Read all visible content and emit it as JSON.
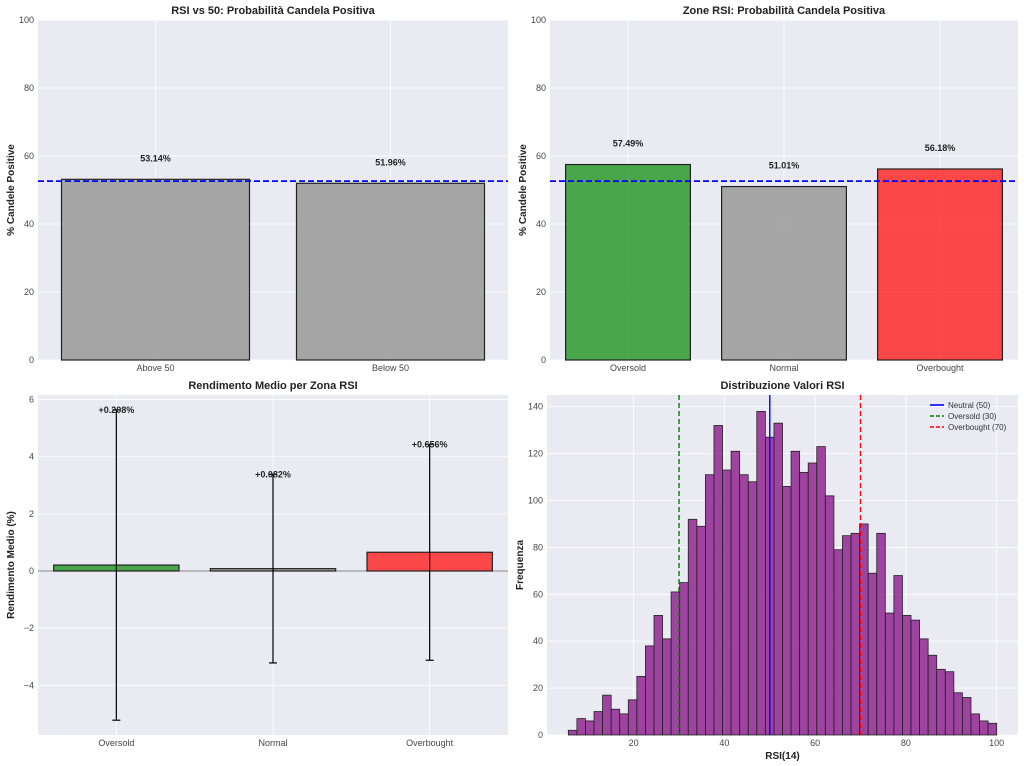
{
  "chart_data": [
    {
      "type": "bar",
      "title": "RSI vs 50: Probabilità Candela Positiva",
      "xlabel": "",
      "ylabel": "% Candele Positive",
      "categories": [
        "Above 50",
        "Below 50"
      ],
      "values": [
        53.14,
        51.96
      ],
      "data_labels": [
        "53.14%",
        "51.96%"
      ],
      "colors": [
        "#999999",
        "#999999"
      ],
      "reference_line": {
        "y": 52.6,
        "color": "#0000ff",
        "style": "dashed"
      },
      "ylim": [
        0,
        100
      ],
      "yticks": [
        0,
        20,
        40,
        60,
        80,
        100
      ],
      "grid": true
    },
    {
      "type": "bar",
      "title": "Zone RSI: Probabilità Candela Positiva",
      "xlabel": "",
      "ylabel": "% Candele Positive",
      "categories": [
        "Oversold",
        "Normal",
        "Overbought"
      ],
      "values": [
        57.49,
        51.01,
        56.18
      ],
      "data_labels": [
        "57.49%",
        "51.01%",
        "56.18%"
      ],
      "colors": [
        "#2e9a2e",
        "#999999",
        "#ff2a2a"
      ],
      "reference_line": {
        "y": 52.6,
        "color": "#0000ff",
        "style": "dashed"
      },
      "ylim": [
        0,
        100
      ],
      "yticks": [
        0,
        20,
        40,
        60,
        80,
        100
      ],
      "grid": true
    },
    {
      "type": "bar",
      "title": "Rendimento Medio per Zona RSI",
      "xlabel": "",
      "ylabel": "Rendimento Medio (%)",
      "categories": [
        "Oversold",
        "Normal",
        "Overbought"
      ],
      "values": [
        0.208,
        0.082,
        0.656
      ],
      "error": [
        5.43,
        3.3,
        3.78
      ],
      "data_labels": [
        "+0.208%",
        "+0.082%",
        "+0.656%"
      ],
      "colors": [
        "#2e9a2e",
        "#999999",
        "#ff2a2a"
      ],
      "ylim": [
        -5.74,
        6.16
      ],
      "yticks": [
        -4,
        -2,
        0,
        2,
        4,
        6
      ],
      "ytick_labels": [
        "−4",
        "−2",
        "0",
        "2",
        "4",
        "6"
      ],
      "grid": true
    },
    {
      "type": "histogram",
      "title": "Distribuzione Valori RSI",
      "xlabel": "RSI(14)",
      "ylabel": "Frequenza",
      "bin_range": [
        5.6,
        100
      ],
      "counts": [
        2,
        7,
        6,
        10,
        17,
        11,
        9,
        15,
        25,
        38,
        51,
        41,
        61,
        65,
        92,
        89,
        111,
        132,
        113,
        121,
        111,
        108,
        138,
        127,
        133,
        106,
        121,
        112,
        116,
        123,
        102,
        79,
        85,
        86,
        90,
        69,
        86,
        52,
        68,
        51,
        49,
        41,
        34,
        28,
        27,
        18,
        16,
        9,
        6,
        5
      ],
      "color": "#8b1a8b",
      "xlim": [
        0.9,
        104.7
      ],
      "ylim": [
        0,
        145
      ],
      "xticks": [
        20,
        40,
        60,
        80,
        100
      ],
      "yticks": [
        0,
        20,
        40,
        60,
        80,
        100,
        120,
        140
      ],
      "vlines": [
        {
          "x": 50,
          "label": "Neutral (50)",
          "color": "#0000ff",
          "style": "solid"
        },
        {
          "x": 30,
          "label": "Oversold (30)",
          "color": "#008000",
          "style": "dashed"
        },
        {
          "x": 70,
          "label": "Overbought (70)",
          "color": "#ff0000",
          "style": "dashed"
        }
      ],
      "legend": "top-right",
      "grid": true
    }
  ]
}
